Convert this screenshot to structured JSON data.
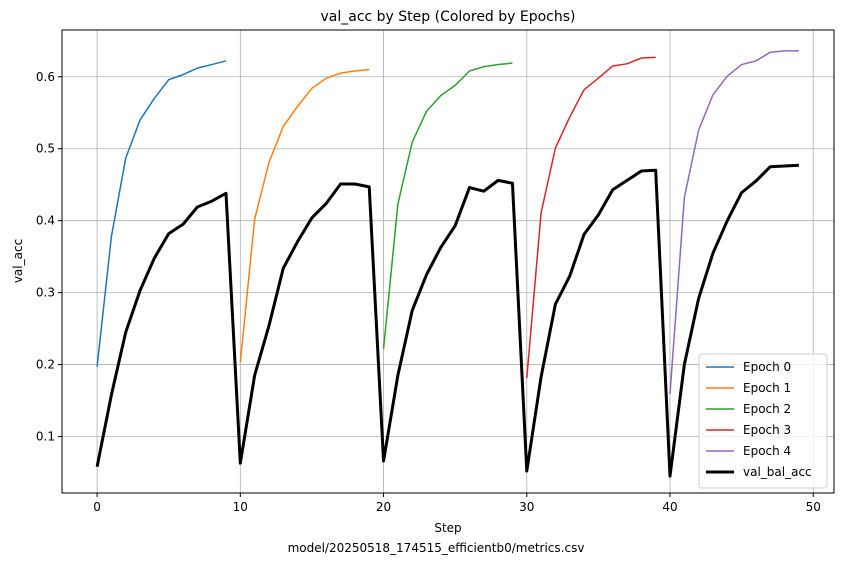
{
  "caption": "model/20250518_174515_efficientb0/metrics.csv",
  "chart_data": {
    "type": "line",
    "title": "val_acc by Step (Colored by Epochs)",
    "xlabel": "Step",
    "ylabel": "val_acc",
    "xlim": [
      -2.45,
      51.45
    ],
    "ylim": [
      0.0215,
      0.665
    ],
    "xticks": [
      0,
      10,
      20,
      30,
      40,
      50
    ],
    "yticks": [
      0.1,
      0.2,
      0.3,
      0.4,
      0.5,
      0.6
    ],
    "grid": true,
    "legend_position": "lower-right",
    "series": [
      {
        "name": "Epoch 0",
        "color": "#1f77b4",
        "width": 1.5,
        "x": [
          0,
          1,
          2,
          3,
          4,
          5,
          6,
          7,
          8,
          9
        ],
        "y": [
          0.197,
          0.378,
          0.487,
          0.54,
          0.57,
          0.596,
          0.603,
          0.612,
          0.617,
          0.622
        ]
      },
      {
        "name": "Epoch 1",
        "color": "#ff7f0e",
        "width": 1.5,
        "x": [
          10,
          11,
          12,
          13,
          14,
          15,
          16,
          17,
          18,
          19
        ],
        "y": [
          0.203,
          0.402,
          0.481,
          0.531,
          0.559,
          0.584,
          0.598,
          0.605,
          0.608,
          0.61
        ]
      },
      {
        "name": "Epoch 2",
        "color": "#2ca02c",
        "width": 1.5,
        "x": [
          20,
          21,
          22,
          23,
          24,
          25,
          26,
          27,
          28,
          29
        ],
        "y": [
          0.222,
          0.423,
          0.509,
          0.552,
          0.574,
          0.588,
          0.608,
          0.614,
          0.617,
          0.619
        ]
      },
      {
        "name": "Epoch 3",
        "color": "#d62728",
        "width": 1.5,
        "x": [
          30,
          31,
          32,
          33,
          34,
          35,
          36,
          37,
          38,
          39
        ],
        "y": [
          0.181,
          0.411,
          0.501,
          0.544,
          0.582,
          0.598,
          0.615,
          0.618,
          0.626,
          0.627
        ]
      },
      {
        "name": "Epoch 4",
        "color": "#9467bd",
        "width": 1.5,
        "x": [
          40,
          41,
          42,
          43,
          44,
          45,
          46,
          47,
          48,
          49
        ],
        "y": [
          0.159,
          0.432,
          0.526,
          0.575,
          0.601,
          0.617,
          0.622,
          0.634,
          0.636,
          0.636
        ]
      },
      {
        "name": "val_bal_acc",
        "color": "#000000",
        "width": 3,
        "x": [
          0,
          1,
          2,
          3,
          4,
          5,
          6,
          7,
          8,
          9,
          10,
          11,
          12,
          13,
          14,
          15,
          16,
          17,
          18,
          19,
          20,
          21,
          22,
          23,
          24,
          25,
          26,
          27,
          28,
          29,
          30,
          31,
          32,
          33,
          34,
          35,
          36,
          37,
          38,
          39,
          40,
          41,
          42,
          43,
          44,
          45,
          46,
          47,
          48,
          49
        ],
        "y": [
          0.058,
          0.158,
          0.245,
          0.303,
          0.348,
          0.382,
          0.395,
          0.419,
          0.427,
          0.438,
          0.063,
          0.185,
          0.254,
          0.334,
          0.371,
          0.404,
          0.424,
          0.451,
          0.451,
          0.447,
          0.066,
          0.185,
          0.275,
          0.325,
          0.363,
          0.393,
          0.446,
          0.441,
          0.456,
          0.452,
          0.052,
          0.183,
          0.284,
          0.323,
          0.381,
          0.408,
          0.443,
          0.456,
          0.469,
          0.47,
          0.045,
          0.2,
          0.292,
          0.355,
          0.4,
          0.439,
          0.455,
          0.475,
          0.476,
          0.477
        ]
      }
    ]
  }
}
